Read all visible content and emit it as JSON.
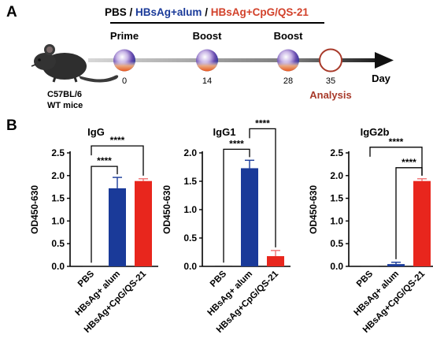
{
  "panel_a": {
    "letter": "A",
    "legend": [
      {
        "text": "PBS",
        "color": "#000000"
      },
      {
        "text": " / ",
        "color": "#000000"
      },
      {
        "text": "HBsAg+alum",
        "color": "#1a3a99"
      },
      {
        "text": " / ",
        "color": "#000000"
      },
      {
        "text": "HBsAg+CpG/QS-21",
        "color": "#d2412a"
      }
    ],
    "events": [
      {
        "label": "Prime",
        "day": "0"
      },
      {
        "label": "Boost",
        "day": "14"
      },
      {
        "label": "Boost",
        "day": "28"
      },
      {
        "label": "",
        "day": "35"
      }
    ],
    "analysis_label": "Analysis",
    "axis_label": "Day",
    "mouse_label": [
      "C57BL/6",
      "WT mice"
    ]
  },
  "panel_b": {
    "letter": "B"
  },
  "colors": {
    "pbs": "#1a1a1a",
    "alum": "#1a3a99",
    "cpg": "#e8261d",
    "analysis": "#a83a2a"
  },
  "chart_data": [
    {
      "type": "bar",
      "title": "IgG",
      "ylabel": "OD450-630",
      "categories": [
        "PBS",
        "HBsAg+ alum",
        "HBsAg+CpG/QS-21"
      ],
      "values": [
        0.01,
        1.72,
        1.88
      ],
      "errors": [
        0.0,
        0.24,
        0.05
      ],
      "ylim": [
        0,
        2.5
      ],
      "yticks": [
        "0.0",
        "0.5",
        "1.0",
        "1.5",
        "2.0",
        "2.5"
      ],
      "significance": [
        {
          "from": 0,
          "to": 1,
          "label": "****"
        },
        {
          "from": 0,
          "to": 2,
          "label": "****"
        }
      ]
    },
    {
      "type": "bar",
      "title": "IgG1",
      "ylabel": "OD450-630",
      "categories": [
        "PBS",
        "HBsAg+ alum",
        "HBsAg+CpG/QS-21"
      ],
      "values": [
        0.01,
        1.73,
        0.18
      ],
      "errors": [
        0.0,
        0.14,
        0.1
      ],
      "ylim": [
        0,
        2.0
      ],
      "yticks": [
        "0.0",
        "0.5",
        "1.0",
        "1.5",
        "2.0"
      ],
      "significance": [
        {
          "from": 0,
          "to": 1,
          "label": "****"
        },
        {
          "from": 1,
          "to": 2,
          "label": "****"
        }
      ]
    },
    {
      "type": "bar",
      "title": "IgG2b",
      "ylabel": "OD450-630",
      "categories": [
        "PBS",
        "HBsAg+ alum",
        "HBsAg+CpG/QS-21"
      ],
      "values": [
        0.01,
        0.05,
        1.88
      ],
      "errors": [
        0.0,
        0.04,
        0.05
      ],
      "ylim": [
        0,
        2.5
      ],
      "yticks": [
        "0.0",
        "0.5",
        "1.0",
        "1.5",
        "2.0",
        "2.5"
      ],
      "significance": [
        {
          "from": 0,
          "to": 2,
          "label": "****"
        },
        {
          "from": 1,
          "to": 2,
          "label": "****"
        }
      ]
    }
  ]
}
